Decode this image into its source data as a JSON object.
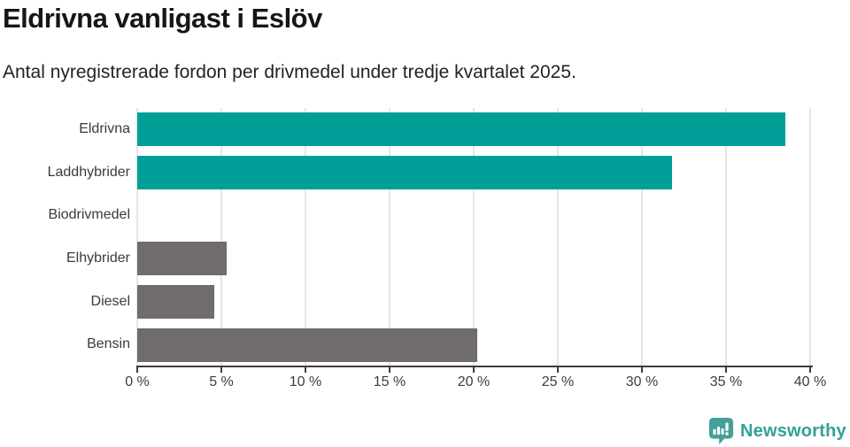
{
  "header": {
    "title": "Eldrivna vanligast i Eslöv",
    "subtitle": "Antal nyregistrerade fordon per drivmedel under tredje kvartalet 2025."
  },
  "chart_data": {
    "type": "bar",
    "orientation": "horizontal",
    "title": "Eldrivna vanligast i Eslöv",
    "subtitle": "Antal nyregistrerade fordon per drivmedel under tredje kvartalet 2025.",
    "categories": [
      "Eldrivna",
      "Laddhybrider",
      "Biodrivmedel",
      "Elhybrider",
      "Diesel",
      "Bensin"
    ],
    "values": [
      38.5,
      31.8,
      0,
      5.3,
      4.6,
      20.2
    ],
    "unit": "%",
    "xlim": [
      0,
      40
    ],
    "x_ticks": [
      0,
      5,
      10,
      15,
      20,
      25,
      30,
      35,
      40
    ],
    "x_tick_labels": [
      "0 %",
      "5 %",
      "10 %",
      "15 %",
      "20 %",
      "25 %",
      "30 %",
      "35 %",
      "40 %"
    ],
    "bar_colors": [
      "#00a099",
      "#00a099",
      "#6f6b6f",
      "#6f6b6f",
      "#6f6b6f",
      "#6f6b6f"
    ],
    "grid": true,
    "legend": "none"
  },
  "colors": {
    "highlight": "#00a099",
    "neutral": "#6f6b6f",
    "gridline": "#e6e6e6",
    "axis": "#3e3e3e",
    "text_dark": "#161616",
    "brand_teal": "#31a19a"
  },
  "branding": {
    "logo_text": "Newsworthy",
    "logo_icon": "newsworthy-speech-bubble-barchart-icon"
  }
}
